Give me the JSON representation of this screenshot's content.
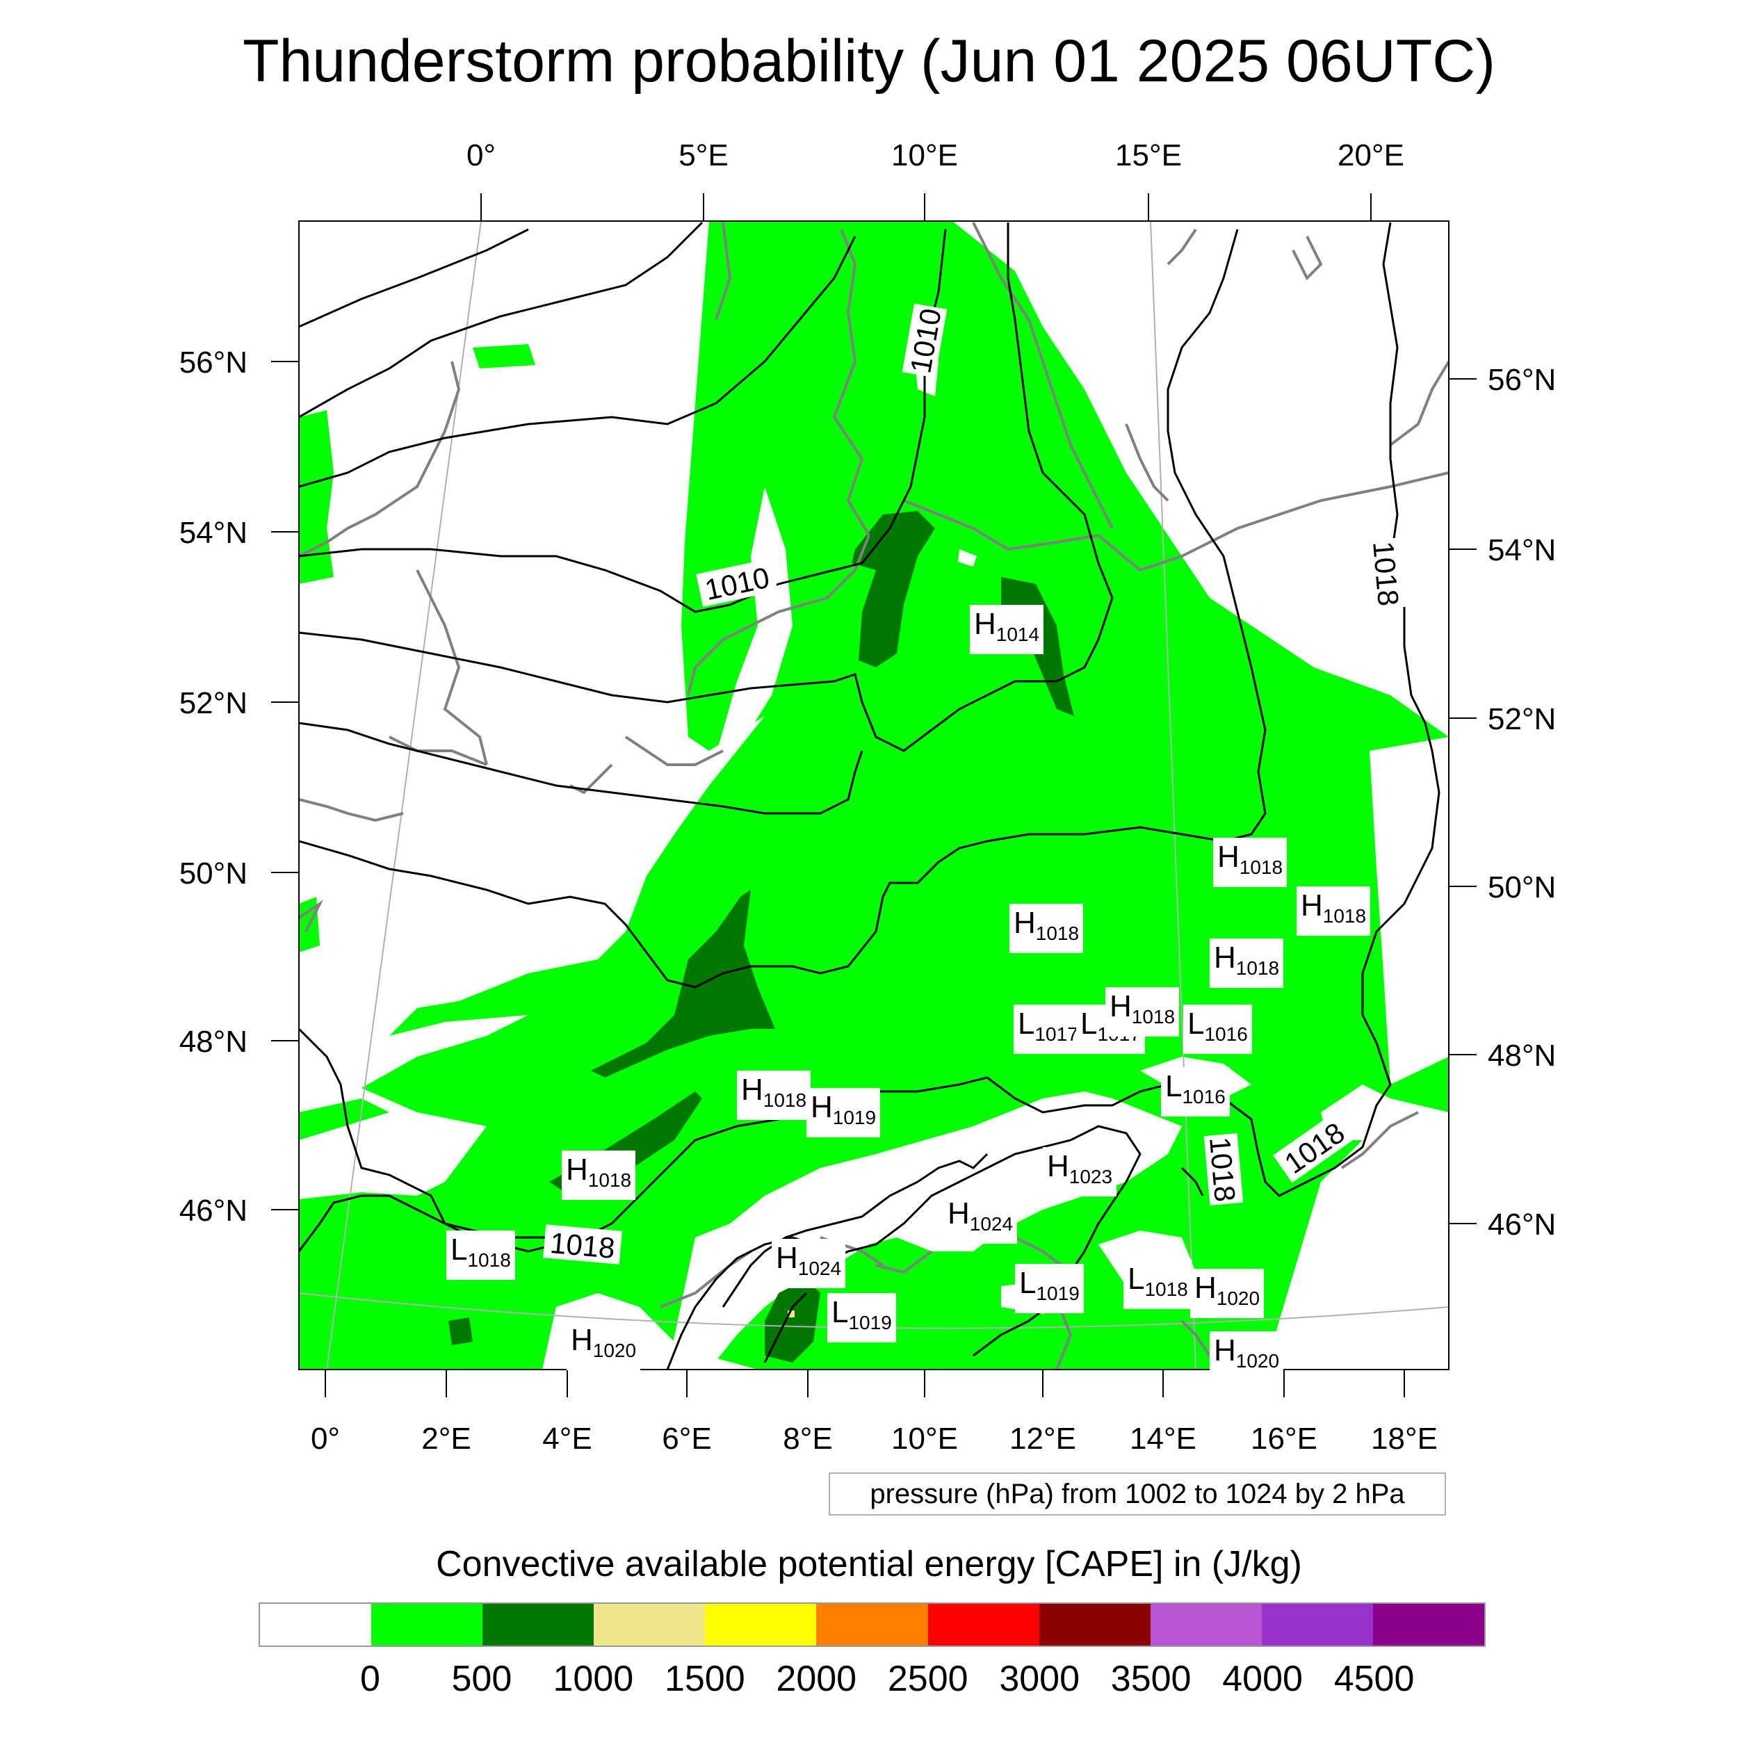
{
  "title": "Thunderstorm probability (Jun 01 2025 06UTC)",
  "map": {
    "top_lon_labels": [
      "0°",
      "5°E",
      "10°E",
      "15°E",
      "20°E"
    ],
    "bottom_lon_labels": [
      "0°",
      "2°E",
      "4°E",
      "6°E",
      "8°E",
      "10°E",
      "12°E",
      "14°E",
      "16°E",
      "18°E"
    ],
    "left_lat_labels": [
      "56°N",
      "54°N",
      "52°N",
      "50°N",
      "48°N",
      "46°N"
    ],
    "right_lat_labels": [
      "56°N",
      "54°N",
      "52°N",
      "50°N",
      "48°N",
      "46°N"
    ],
    "contour_note": "pressure (hPa) from 1002 to 1024 by 2 hPa",
    "isobar_labels": [
      "1010",
      "1010",
      "1018",
      "1018",
      "1018",
      "1018"
    ],
    "pressure_centers": [
      {
        "t": "H",
        "v": "1014"
      },
      {
        "t": "H",
        "v": "1018"
      },
      {
        "t": "H",
        "v": "1018"
      },
      {
        "t": "H",
        "v": "1018"
      },
      {
        "t": "H",
        "v": "1018"
      },
      {
        "t": "L",
        "v": "1017"
      },
      {
        "t": "L",
        "v": "1017"
      },
      {
        "t": "H",
        "v": "1018"
      },
      {
        "t": "L",
        "v": "1016"
      },
      {
        "t": "L",
        "v": "1016"
      },
      {
        "t": "H",
        "v": "1018"
      },
      {
        "t": "H",
        "v": "1019"
      },
      {
        "t": "H",
        "v": "1023"
      },
      {
        "t": "H",
        "v": "1018"
      },
      {
        "t": "H",
        "v": "1024"
      },
      {
        "t": "L",
        "v": "1018"
      },
      {
        "t": "H",
        "v": "1024"
      },
      {
        "t": "L",
        "v": "1019"
      },
      {
        "t": "L",
        "v": "1018"
      },
      {
        "t": "H",
        "v": "1020"
      },
      {
        "t": "L",
        "v": "1019"
      },
      {
        "t": "H",
        "v": "1020"
      },
      {
        "t": "H",
        "v": "1020"
      }
    ]
  },
  "colorbar": {
    "title": "Convective available potential energy [CAPE] in (J/kg)",
    "colors": [
      "#ffffff",
      "#00ff00",
      "#007800",
      "#f0e68c",
      "#ffff00",
      "#ff8000",
      "#ff0000",
      "#8b0000",
      "#ba55d3",
      "#9932cc",
      "#8b008b"
    ],
    "labels": [
      "0",
      "500",
      "1000",
      "1500",
      "2000",
      "2500",
      "3000",
      "3500",
      "4000",
      "4500"
    ]
  },
  "colors": {
    "cape_0_500": "#00ff00",
    "cape_500_1000": "#007800",
    "isobar": "#000000",
    "coastline": "#808080"
  }
}
